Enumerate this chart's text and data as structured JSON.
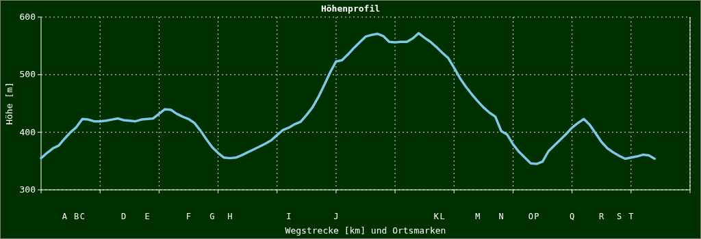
{
  "chart_data": {
    "type": "line",
    "title": "Höhenprofil",
    "xlabel": "Wegstrecke [km] und Ortsmarken",
    "ylabel": "Höhe [m]",
    "categories": [
      null,
      null,
      null,
      null,
      "A",
      null,
      "B",
      "C",
      null,
      null,
      null,
      null,
      null,
      null,
      "D",
      null,
      null,
      null,
      "E",
      null,
      null,
      null,
      null,
      null,
      null,
      "F",
      null,
      null,
      null,
      "G",
      null,
      null,
      "H",
      null,
      null,
      null,
      null,
      null,
      null,
      null,
      null,
      null,
      "I",
      null,
      null,
      null,
      null,
      null,
      null,
      null,
      "J",
      null,
      null,
      null,
      null,
      null,
      null,
      null,
      null,
      null,
      null,
      null,
      null,
      null,
      null,
      null,
      null,
      "K",
      "L",
      null,
      null,
      null,
      null,
      null,
      "M",
      null,
      null,
      null,
      "N",
      null,
      null,
      null,
      null,
      "O",
      "P",
      null,
      null,
      null,
      null,
      null,
      "Q",
      null,
      null,
      null,
      null,
      "R",
      null,
      null,
      "S",
      null,
      "T",
      null,
      null,
      null,
      null,
      null,
      null,
      null,
      null,
      null,
      null
    ],
    "ylim": [
      300,
      600
    ],
    "yticks": [
      300,
      400,
      500,
      600
    ],
    "grid": true,
    "line_style": "solid",
    "marker": "none",
    "series": [
      {
        "color": "#7ec8ea",
        "values": [
          355,
          364,
          372,
          377,
          389,
          400,
          409,
          423,
          422,
          419,
          419,
          420,
          422,
          424,
          421,
          420,
          419,
          422,
          423,
          424,
          432,
          440,
          439,
          432,
          427,
          423,
          416,
          403,
          388,
          374,
          364,
          356,
          355,
          356,
          360,
          365,
          370,
          375,
          380,
          386,
          395,
          404,
          408,
          414,
          418,
          430,
          443,
          461,
          482,
          504,
          523,
          525,
          535,
          546,
          556,
          566,
          569,
          571,
          567,
          557,
          556,
          557,
          557,
          563,
          572,
          564,
          557,
          548,
          538,
          529,
          512,
          494,
          479,
          466,
          454,
          443,
          434,
          427,
          402,
          396,
          379,
          366,
          356,
          346,
          345,
          349,
          367,
          377,
          387,
          397,
          408,
          416,
          423,
          413,
          398,
          383,
          372,
          365,
          359,
          354,
          356,
          358,
          361,
          360,
          354,
          null,
          null,
          null,
          null,
          null,
          null
        ]
      }
    ]
  }
}
